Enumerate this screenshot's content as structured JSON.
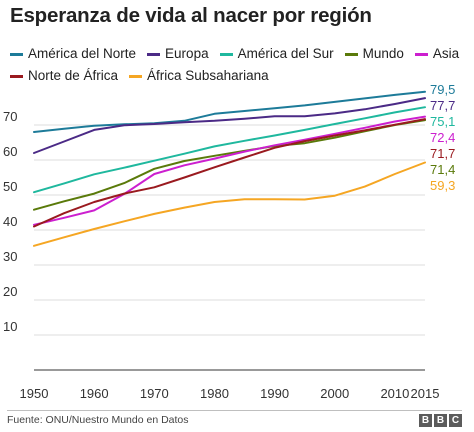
{
  "chart_data": {
    "type": "line",
    "title": "Esperanza de vida al nacer por región",
    "xlabel": "",
    "ylabel": "",
    "x": [
      1950,
      1955,
      1960,
      1965,
      1970,
      1975,
      1980,
      1985,
      1990,
      1995,
      2000,
      2005,
      2010,
      2015
    ],
    "xticks": [
      "1950",
      "1960",
      "1970",
      "1980",
      "1990",
      "2000",
      "2010",
      "2015"
    ],
    "xtick_values": [
      1950,
      1960,
      1970,
      1980,
      1990,
      2000,
      2010,
      2015
    ],
    "yticks": [
      10,
      20,
      30,
      40,
      50,
      60,
      70
    ],
    "ylim": [
      0,
      80
    ],
    "xlim": [
      1950,
      2015
    ],
    "grid": true,
    "legend_position": "top",
    "series": [
      {
        "name": "América del Norte",
        "color": "#1d7b99",
        "end_label": "79,5",
        "values": [
          68.0,
          68.9,
          69.8,
          70.2,
          70.5,
          71.2,
          73.2,
          74.0,
          74.8,
          75.6,
          76.6,
          77.6,
          78.6,
          79.5
        ]
      },
      {
        "name": "Europa",
        "color": "#4b2a86",
        "end_label": "77,7",
        "values": [
          62.0,
          65.3,
          68.6,
          69.9,
          70.3,
          70.8,
          71.2,
          71.8,
          72.5,
          72.5,
          73.3,
          74.5,
          76.0,
          77.7
        ]
      },
      {
        "name": "América del Sur",
        "color": "#1fb89e",
        "end_label": "75,1",
        "values": [
          50.8,
          53.3,
          55.9,
          57.8,
          59.8,
          61.8,
          63.9,
          65.5,
          67.0,
          68.6,
          70.3,
          71.9,
          73.6,
          75.1
        ]
      },
      {
        "name": "Mundo",
        "color": "#5a7a0a",
        "end_label": "71,4",
        "values": [
          45.8,
          48.2,
          50.4,
          53.4,
          57.5,
          59.7,
          61.2,
          62.6,
          64.0,
          64.8,
          66.4,
          68.2,
          70.0,
          71.4
        ]
      },
      {
        "name": "Asia",
        "color": "#cc1fcf",
        "end_label": "72,4",
        "values": [
          41.5,
          43.5,
          45.6,
          50.3,
          56.0,
          58.5,
          60.4,
          62.4,
          64.2,
          65.8,
          67.5,
          69.2,
          71.0,
          72.4
        ]
      },
      {
        "name": "Norte de África",
        "color": "#9a1a1f",
        "end_label": "71,7",
        "values": [
          41.0,
          44.8,
          48.0,
          50.4,
          52.2,
          55.0,
          57.9,
          60.7,
          63.5,
          65.4,
          67.0,
          68.5,
          70.1,
          71.7
        ]
      },
      {
        "name": "África Subsahariana",
        "color": "#f5a623",
        "end_label": "59,3",
        "values": [
          35.5,
          37.9,
          40.3,
          42.5,
          44.6,
          46.4,
          48.0,
          48.8,
          48.8,
          48.7,
          49.8,
          52.4,
          56.0,
          59.3
        ]
      }
    ]
  },
  "legend": {
    "rows": [
      [
        {
          "label": "América del Norte",
          "color": "#1d7b99"
        },
        {
          "label": "Europa",
          "color": "#4b2a86"
        },
        {
          "label": "América del Sur",
          "color": "#1fb89e"
        },
        {
          "label": "Mundo",
          "color": "#5a7a0a"
        },
        {
          "label": "Asia",
          "color": "#cc1fcf"
        }
      ],
      [
        {
          "label": "Norte de África",
          "color": "#9a1a1f"
        },
        {
          "label": "África Subsahariana",
          "color": "#f5a623"
        }
      ]
    ]
  },
  "footer": {
    "source": "Fuente: ONU/Nuestro Mundo en Datos",
    "logo_letters": [
      "B",
      "B",
      "C"
    ]
  }
}
